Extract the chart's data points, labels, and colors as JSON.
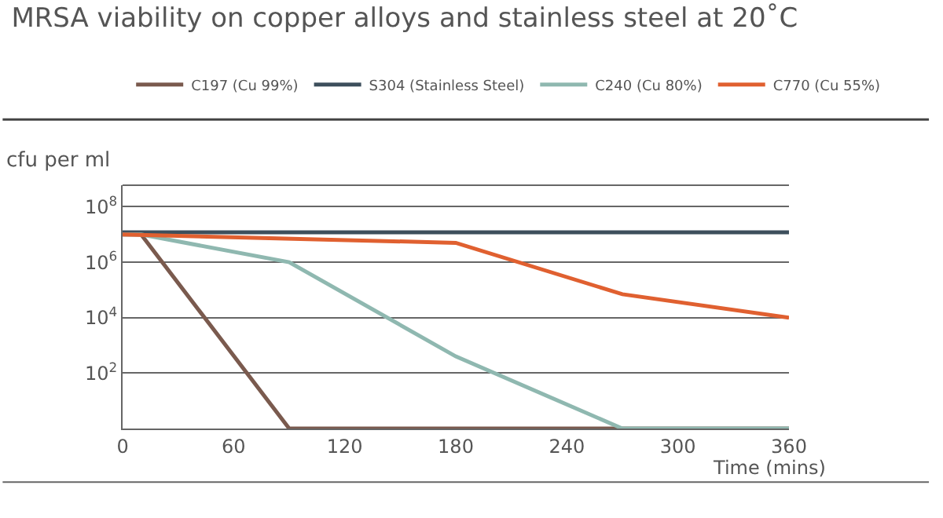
{
  "chart_data": {
    "type": "line",
    "title": "MRSA viability on copper alloys and stainless steel at 20˚C",
    "xlabel": "Time (mins)",
    "ylabel": "cfu per ml",
    "log": "y",
    "grid": "y",
    "legend": "top right",
    "marker": "none",
    "line_style": "solid",
    "xlim": [
      0,
      360
    ],
    "xticks": [
      0,
      60,
      120,
      180,
      240,
      300,
      360
    ],
    "ylim": [
      1,
      600000000
    ],
    "yticks": [
      {
        "value": 1,
        "label": null
      },
      {
        "value": 100,
        "label": "10$^{2}$"
      },
      {
        "value": 10000,
        "label": "10$^{4}$"
      },
      {
        "value": 1000000,
        "label": "10$^{6}$"
      },
      {
        "value": 100000000,
        "label": "10$^{8}$"
      }
    ],
    "series": [
      {
        "name": "C197 (Cu 99%)",
        "color": "#7a5a4e",
        "x": [
          0,
          10,
          90,
          360
        ],
        "values": [
          10000000,
          10000000,
          1,
          1
        ]
      },
      {
        "name": "S304 (Stainless Steel)",
        "color": "#3d4f5c",
        "x": [
          0,
          360
        ],
        "values": [
          12000000,
          12000000
        ]
      },
      {
        "name": "C240 (Cu 80%)",
        "color": "#8fb8b0",
        "x": [
          0,
          10,
          90,
          180,
          270,
          360
        ],
        "values": [
          10000000,
          10000000,
          1000000,
          400,
          1,
          1
        ]
      },
      {
        "name": "C770 (Cu 55%)",
        "color": "#e06030",
        "x": [
          0,
          180,
          270,
          360
        ],
        "values": [
          10000000,
          5000000,
          70000,
          10000
        ]
      }
    ]
  }
}
